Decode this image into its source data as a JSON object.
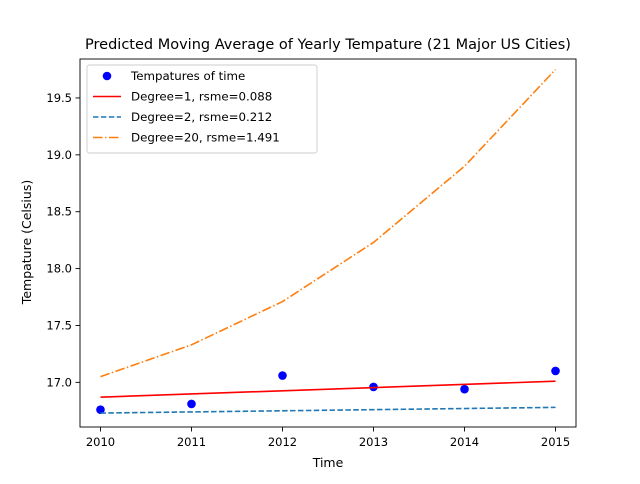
{
  "chart_data": {
    "type": "line",
    "title": "Predicted Moving Average of Yearly Tempature (21 Major US Cities)",
    "xlabel": "Time",
    "ylabel": "Tempature (Celsius)",
    "xlim": [
      2009.775,
      2015.225
    ],
    "ylim": [
      16.6075,
      19.8425
    ],
    "x_ticks": [
      2010,
      2011,
      2012,
      2013,
      2014,
      2015
    ],
    "y_ticks": [
      17.0,
      17.5,
      18.0,
      18.5,
      19.0,
      19.5
    ],
    "grid": false,
    "legend_position": "upper-left",
    "series": [
      {
        "name": "Tempatures of time",
        "style": "points",
        "color": "#0000ff",
        "x": [
          2010,
          2011,
          2012,
          2013,
          2014,
          2015
        ],
        "y": [
          16.76,
          16.81,
          17.06,
          16.96,
          16.94,
          17.1
        ]
      },
      {
        "name": "Degree=1, rsme=0.088",
        "style": "solid",
        "color": "#ff0000",
        "x": [
          2010,
          2015
        ],
        "y": [
          16.87,
          17.01
        ]
      },
      {
        "name": "Degree=2, rsme=0.212",
        "style": "dashed",
        "color": "#1f77b4",
        "x": [
          2010,
          2011,
          2012,
          2013,
          2014,
          2015
        ],
        "y": [
          16.73,
          16.74,
          16.75,
          16.76,
          16.77,
          16.78
        ]
      },
      {
        "name": "Degree=20, rsme=1.491",
        "style": "dashdot",
        "color": "#ff7f0e",
        "x": [
          2010,
          2011,
          2012,
          2013,
          2014,
          2015
        ],
        "y": [
          17.05,
          17.33,
          17.71,
          18.23,
          18.9,
          19.75
        ]
      }
    ]
  }
}
